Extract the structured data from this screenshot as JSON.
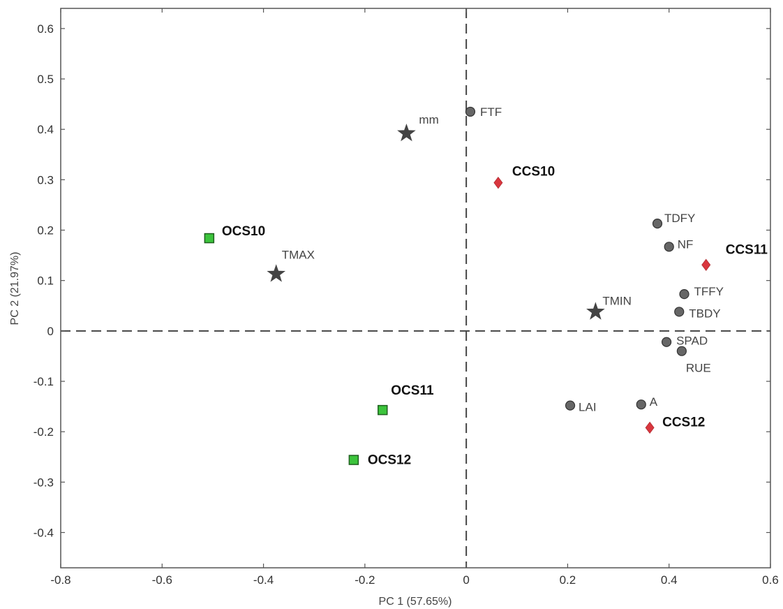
{
  "chart_data": {
    "type": "scatter",
    "title": "",
    "xlabel": "PC 1 (57.65%)",
    "ylabel": "PC 2 (21.97%)",
    "xlim": [
      -0.8,
      0.6
    ],
    "ylim": [
      -0.47,
      0.64
    ],
    "xticks": [
      -0.8,
      -0.6,
      -0.4,
      -0.2,
      0,
      0.2,
      0.4,
      0.6
    ],
    "xtick_labels": [
      "-0.8",
      "-0.6",
      "-0.4",
      "-0.2",
      "0",
      "0.2",
      "0.4",
      "0.6"
    ],
    "yticks": [
      0.6,
      0.5,
      0.4,
      0.3,
      0.2,
      0.1,
      0,
      -0.1,
      -0.2,
      -0.3,
      -0.4
    ],
    "ytick_labels": [
      "0.6",
      "0.5",
      "0.4",
      "0.3",
      "0.2",
      "0.1",
      "0",
      "-0.1",
      "-0.2",
      "-0.3",
      "-0.4"
    ],
    "reference_lines": {
      "x": 0,
      "y": 0,
      "style": "dashed"
    },
    "grid": false,
    "colors": {
      "variable": "#666666",
      "climate": "#444444",
      "conventional": "#d9363e",
      "organic": "#3cc43c"
    },
    "series": [
      {
        "marker": "circle",
        "color": "#666666",
        "points": [
          {
            "label": "FTF",
            "x": 0.008,
            "y": 0.435
          },
          {
            "label": "TDFY",
            "x": 0.377,
            "y": 0.213
          },
          {
            "label": "NF",
            "x": 0.4,
            "y": 0.167
          },
          {
            "label": "TFFY",
            "x": 0.43,
            "y": 0.073
          },
          {
            "label": "TBDY",
            "x": 0.42,
            "y": 0.038
          },
          {
            "label": "SPAD",
            "x": 0.395,
            "y": -0.022
          },
          {
            "label": "RUE",
            "x": 0.425,
            "y": -0.04
          },
          {
            "label": "LAI",
            "x": 0.205,
            "y": -0.148
          },
          {
            "label": "A",
            "x": 0.345,
            "y": -0.146
          }
        ]
      },
      {
        "marker": "star",
        "color": "#444444",
        "points": [
          {
            "label": "mm",
            "x": -0.118,
            "y": 0.392
          },
          {
            "label": "TMAX",
            "x": -0.375,
            "y": 0.113
          },
          {
            "label": "TMIN",
            "x": 0.255,
            "y": 0.038
          }
        ]
      },
      {
        "marker": "diamond",
        "color": "#d9363e",
        "points": [
          {
            "label": "CCS10",
            "x": 0.063,
            "y": 0.294
          },
          {
            "label": "CCS11",
            "x": 0.473,
            "y": 0.131
          },
          {
            "label": "CCS12",
            "x": 0.362,
            "y": -0.192
          }
        ]
      },
      {
        "marker": "square",
        "color": "#3cc43c",
        "points": [
          {
            "label": "OCS10",
            "x": -0.507,
            "y": 0.184
          },
          {
            "label": "OCS11",
            "x": -0.165,
            "y": -0.157
          },
          {
            "label": "OCS12",
            "x": -0.222,
            "y": -0.256
          }
        ]
      }
    ]
  }
}
